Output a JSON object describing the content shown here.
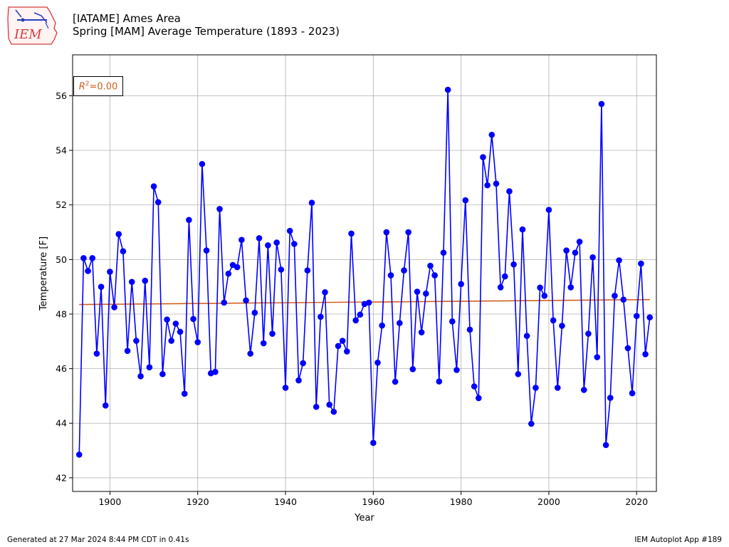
{
  "header": {
    "title_line1": "[IATAME] Ames Area",
    "title_line2": "Spring [MAM] Average Temperature (1893 - 2023)"
  },
  "logo": {
    "text": "IEM",
    "icon": "iowa-state-outline-logo"
  },
  "footer": {
    "left": "Generated at 27 Mar 2024 8:44 PM CDT in 0.41s",
    "right": "IEM Autoplot App #189"
  },
  "colors": {
    "series": "#0000ff",
    "trend": "#d35f1f",
    "grid": "#b0b0b0"
  },
  "annotation": {
    "r2_label": "R",
    "r2_sup": "2",
    "r2_value": "=0.00"
  },
  "chart_data": {
    "type": "line",
    "title": "Spring [MAM] Average Temperature (1893 - 2023)",
    "xlabel": "Year",
    "ylabel": "Temperature [F]",
    "xlim": [
      1891.5,
      2024.5
    ],
    "ylim": [
      41.5,
      57.5
    ],
    "xticks": [
      1900,
      1920,
      1940,
      1960,
      1980,
      2000,
      2020
    ],
    "yticks": [
      42,
      44,
      46,
      48,
      50,
      52,
      54,
      56
    ],
    "grid": true,
    "series": [
      {
        "x_start": 1893,
        "values": [
          42.85,
          50.05,
          49.58,
          50.05,
          46.55,
          49.0,
          44.65,
          49.55,
          48.25,
          50.93,
          50.3,
          46.65,
          49.18,
          47.02,
          45.72,
          49.22,
          46.05,
          52.68,
          52.1,
          45.8,
          47.8,
          47.02,
          47.65,
          47.35,
          45.08,
          51.45,
          47.82,
          46.97,
          53.5,
          50.33,
          45.83,
          45.88,
          51.85,
          48.42,
          49.48,
          49.8,
          49.72,
          50.72,
          48.5,
          46.55,
          48.05,
          50.78,
          46.93,
          50.52,
          47.28,
          50.62,
          49.63,
          45.3,
          51.05,
          50.57,
          45.57,
          46.2,
          49.6,
          52.08,
          44.6,
          47.9,
          48.8,
          44.68,
          44.42,
          46.83,
          47.02,
          46.63,
          50.95,
          47.77,
          47.98,
          48.37,
          48.42,
          43.28,
          46.22,
          47.58,
          51.0,
          49.42,
          45.52,
          47.67,
          49.6,
          51.0,
          45.98,
          48.82,
          47.33,
          48.75,
          49.77,
          49.42,
          45.53,
          50.25,
          56.22,
          47.73,
          45.95,
          49.1,
          52.17,
          47.43,
          45.35,
          44.92,
          53.75,
          52.72,
          54.57,
          52.78,
          48.98,
          49.38,
          52.5,
          49.82,
          45.8,
          51.1,
          47.2,
          43.98,
          45.3,
          48.97,
          48.67,
          51.82,
          47.77,
          45.3,
          47.57,
          50.33,
          48.98,
          50.25,
          50.65,
          45.22,
          47.28,
          50.08,
          46.42,
          55.7,
          43.2,
          44.93,
          48.67,
          49.97,
          48.53,
          46.75,
          45.1,
          47.93,
          49.85,
          46.53,
          47.88
        ]
      }
    ],
    "trend": {
      "x": [
        1893,
        2023
      ],
      "y": [
        48.35,
        48.53
      ]
    }
  }
}
